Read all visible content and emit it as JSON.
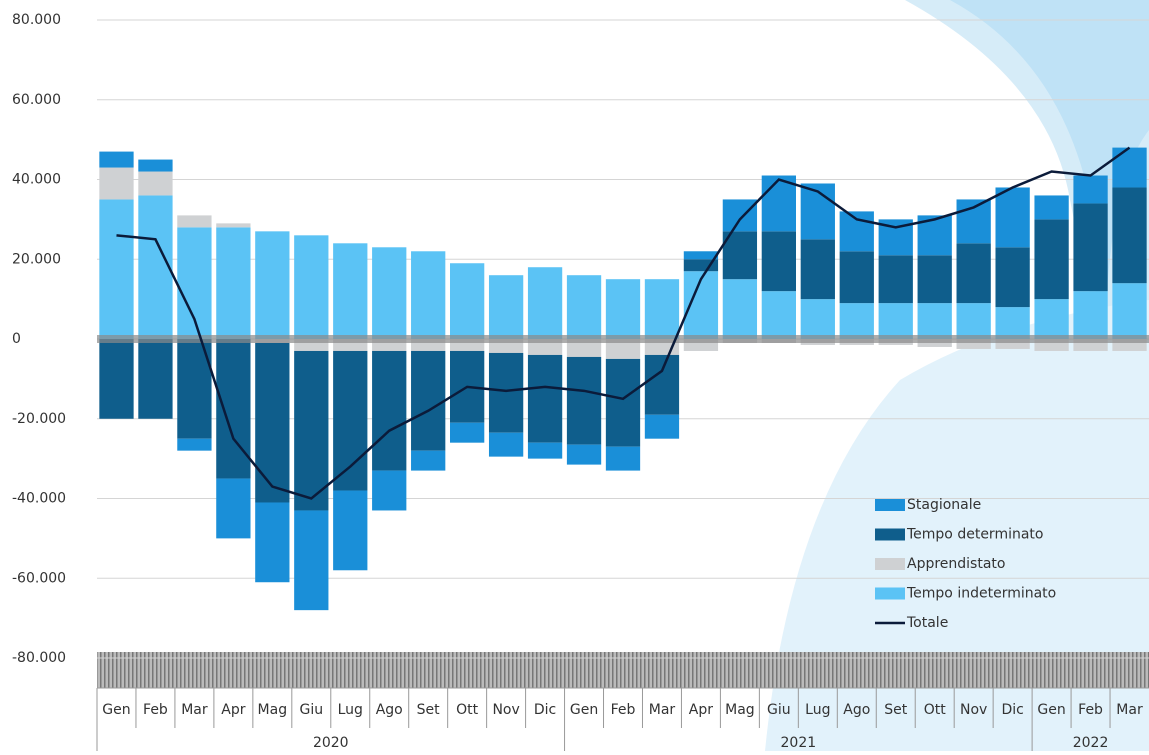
{
  "chart_data": {
    "type": "stacked_bar",
    "categories": [
      "Gen",
      "Feb",
      "Mar",
      "Apr",
      "Mag",
      "Giu",
      "Lug",
      "Ago",
      "Set",
      "Ott",
      "Nov",
      "Dic",
      "Gen",
      "Feb",
      "Mar",
      "Apr",
      "Mag",
      "Giu",
      "Lug",
      "Ago",
      "Set",
      "Ott",
      "Nov",
      "Dic",
      "Gen",
      "Feb",
      "Mar"
    ],
    "years": [
      "2020",
      "2021",
      "2022"
    ],
    "ylim": [
      -80000,
      80000
    ],
    "yticks": [
      {
        "value": 80000,
        "label": "80.000"
      },
      {
        "value": 60000,
        "label": "60.000"
      },
      {
        "value": 40000,
        "label": "40.000"
      },
      {
        "value": 20000,
        "label": "20.000"
      },
      0,
      {
        "value": -20000,
        "label": "-20.000"
      },
      {
        "value": -40000,
        "label": "-40.000"
      },
      {
        "value": -60000,
        "label": "-60.000"
      },
      {
        "value": -80000,
        "label": "-80.000"
      }
    ],
    "grid": true,
    "series": [
      {
        "name": "Stagionale",
        "color": "#1a8fd8",
        "type": "bar",
        "values": [
          4000,
          3000,
          -3000,
          -15000,
          -20000,
          -25000,
          -20000,
          -10000,
          -5000,
          -5000,
          -6000,
          -4000,
          -5000,
          -6000,
          -6000,
          2000,
          8000,
          14000,
          14000,
          10000,
          9000,
          10000,
          11000,
          15000,
          6000,
          7000,
          10000
        ]
      },
      {
        "name": "Tempo determinato",
        "color": "#0f5e8c",
        "type": "bar",
        "values": [
          -20000,
          -20000,
          -25000,
          -35000,
          -40000,
          -40000,
          -35000,
          -30000,
          -25000,
          -18000,
          -20000,
          -22000,
          -22000,
          -22000,
          -15000,
          3000,
          12000,
          15000,
          15000,
          13000,
          12000,
          12000,
          15000,
          15000,
          20000,
          22000,
          24000
        ]
      },
      {
        "name": "Apprendistato",
        "color": "#cfd1d3",
        "type": "bar",
        "values": [
          8000,
          6000,
          3000,
          1000,
          -1000,
          -3000,
          -3000,
          -3000,
          -3000,
          -3000,
          -3500,
          -4000,
          -4500,
          -5000,
          -4000,
          -3000,
          -1000,
          -1000,
          -1500,
          -1500,
          -1500,
          -2000,
          -2500,
          -2500,
          -3000,
          -3000,
          -3000
        ]
      },
      {
        "name": "Tempo indeterminato",
        "color": "#5bc3f5",
        "type": "bar",
        "values": [
          35000,
          36000,
          28000,
          28000,
          27000,
          26000,
          24000,
          23000,
          22000,
          19000,
          16000,
          18000,
          16000,
          15000,
          15000,
          17000,
          15000,
          12000,
          10000,
          9000,
          9000,
          9000,
          9000,
          8000,
          10000,
          12000,
          14000
        ]
      },
      {
        "name": "Totale",
        "color": "#0b1b3a",
        "type": "line",
        "values": [
          26000,
          25000,
          5000,
          -25000,
          -37000,
          -40000,
          -32000,
          -23000,
          -18000,
          -12000,
          -13000,
          -12000,
          -13000,
          -15000,
          -8000,
          15000,
          30000,
          40000,
          37000,
          30000,
          28000,
          30000,
          33000,
          38000,
          42000,
          41000,
          48000
        ]
      }
    ]
  }
}
